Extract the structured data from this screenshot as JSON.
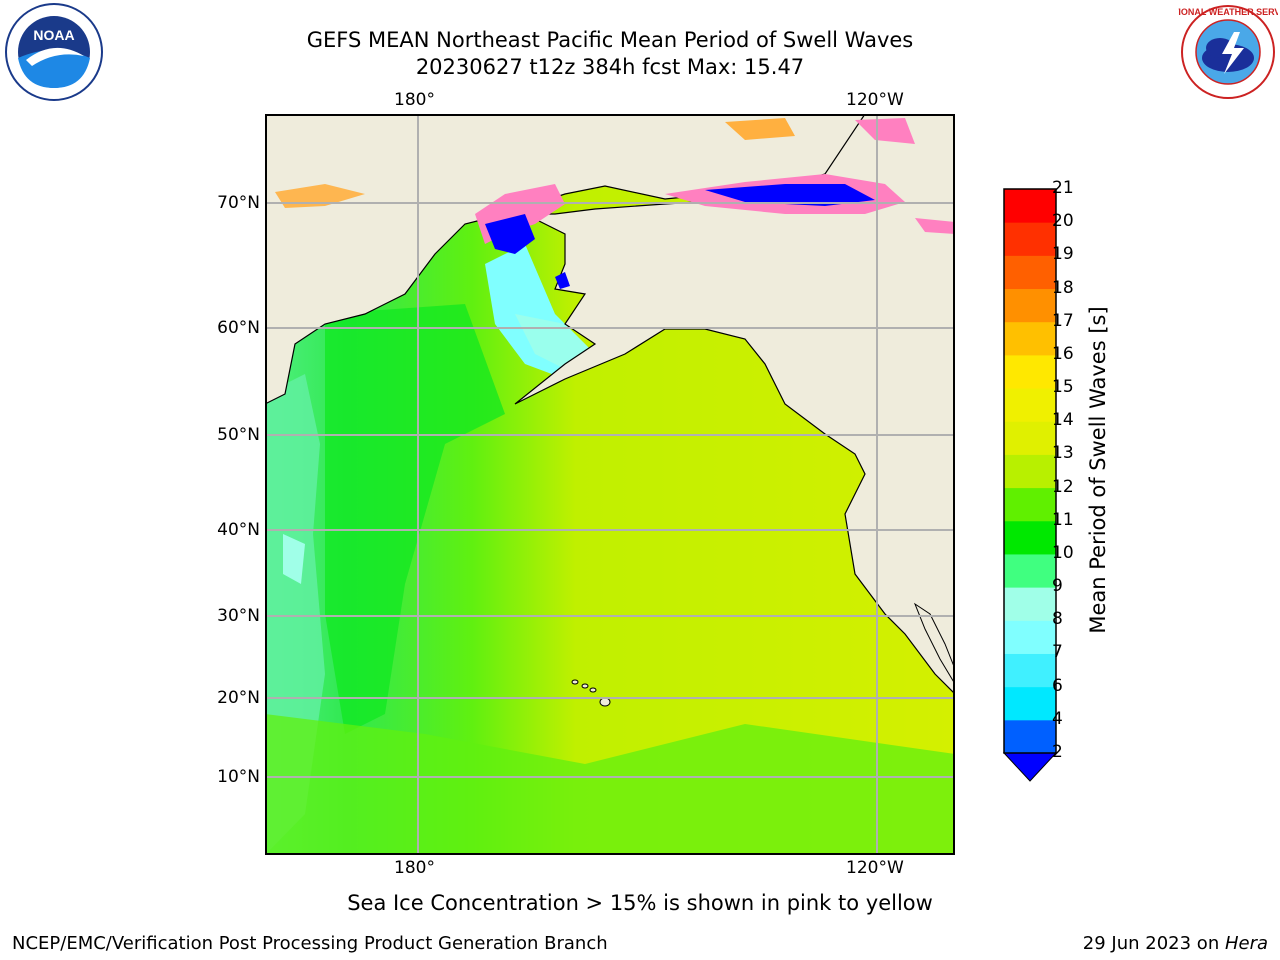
{
  "header": {
    "title_line1": "GEFS MEAN Northeast Pacific Mean Period of Swell Waves",
    "title_line2": "20230627 t12z 384h fcst   Max: 15.47"
  },
  "map": {
    "lon_ticks_top": [
      "180°",
      "120°W"
    ],
    "lon_ticks_bottom": [
      "180°",
      "120°W"
    ],
    "lat_ticks": [
      "70°N",
      "60°N",
      "50°N",
      "40°N",
      "30°N",
      "20°N",
      "10°N"
    ],
    "colors": {
      "land": "#efecdc",
      "grid": "#b0b0b0",
      "coast": "#000000"
    }
  },
  "colorbar": {
    "label": "Mean Period of Swell Waves [s]",
    "ticks": [
      "2",
      "4",
      "6",
      "7",
      "8",
      "9",
      "10",
      "11",
      "12",
      "13",
      "14",
      "15",
      "16",
      "17",
      "18",
      "19",
      "20",
      "21"
    ],
    "colors": [
      "#0060ff",
      "#00e8ff",
      "#40f0ff",
      "#80ffff",
      "#a0ffe8",
      "#40ff80",
      "#00e800",
      "#60f000",
      "#b8f000",
      "#e0f000",
      "#f0f000",
      "#ffe800",
      "#ffc000",
      "#ff9000",
      "#ff6000",
      "#ff3000",
      "#ff0000"
    ],
    "under_color": "#0000ff"
  },
  "footer": {
    "note": "Sea Ice Concentration > 15% is shown in pink to yellow",
    "left": "NCEP/EMC/Verification Post Processing Product Generation Branch",
    "right_prefix": "29 Jun 2023 on ",
    "right_host": "Hera"
  },
  "logos": {
    "noaa_text": "NOAA",
    "nws_text": "NATIONAL WEATHER SERVICE"
  }
}
